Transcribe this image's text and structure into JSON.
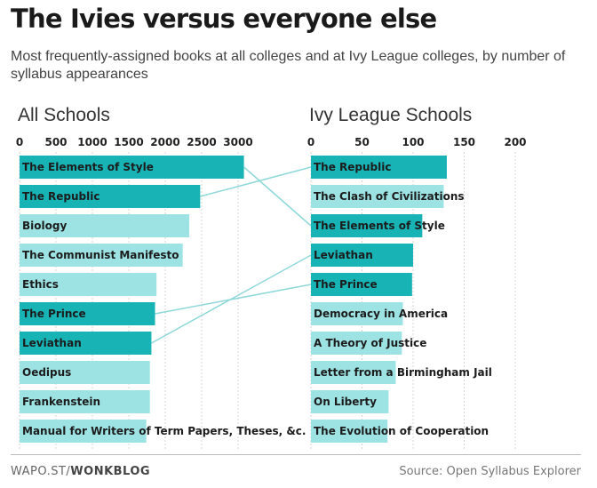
{
  "header": {
    "title": "The Ivies versus everyone else",
    "subtitle": "Most frequently-assigned books at all colleges and at Ivy League colleges, by number of syllabus appearances"
  },
  "footer": {
    "brand_prefix": "WAPO.ST/",
    "brand_name": "WONKBLOG",
    "source": "Source: Open Syllabus Explorer"
  },
  "colors": {
    "highlight": "#17b3b5",
    "light": "#9ee3e4",
    "connector": "#8fd8da",
    "grid": "#d4d4d4"
  },
  "chart_data": [
    {
      "type": "bar",
      "orientation": "horizontal",
      "title": "All Schools",
      "xlim": [
        0,
        3000
      ],
      "ticks": [
        0,
        500,
        1000,
        1500,
        2000,
        2500,
        3000
      ],
      "categories": [
        "The Elements of Style",
        "The Republic",
        "Biology",
        "The Communist Manifesto",
        "Ethics",
        "The Prince",
        "Leviathan",
        "Oedipus",
        "Frankenstein",
        "Manual for Writers of Term Papers, Theses, &c."
      ],
      "values": [
        3080,
        2480,
        2330,
        2240,
        1880,
        1860,
        1810,
        1790,
        1790,
        1740
      ],
      "highlighted": [
        true,
        true,
        false,
        false,
        false,
        true,
        true,
        false,
        false,
        false
      ]
    },
    {
      "type": "bar",
      "orientation": "horizontal",
      "title": "Ivy League Schools",
      "xlim": [
        0,
        200
      ],
      "ticks": [
        0,
        50,
        100,
        150,
        200
      ],
      "categories": [
        "The Republic",
        "The Clash of Civilizations",
        "The Elements of Style",
        "Leviathan",
        "The Prince",
        "Democracy in America",
        "A Theory of Justice",
        "Letter from a Birmingham Jail",
        "On Liberty",
        "The Evolution of Cooperation"
      ],
      "values": [
        133,
        130,
        109,
        100,
        99,
        90,
        89,
        83,
        76,
        75
      ],
      "highlighted": [
        true,
        false,
        true,
        true,
        true,
        false,
        false,
        false,
        false,
        false
      ]
    }
  ]
}
